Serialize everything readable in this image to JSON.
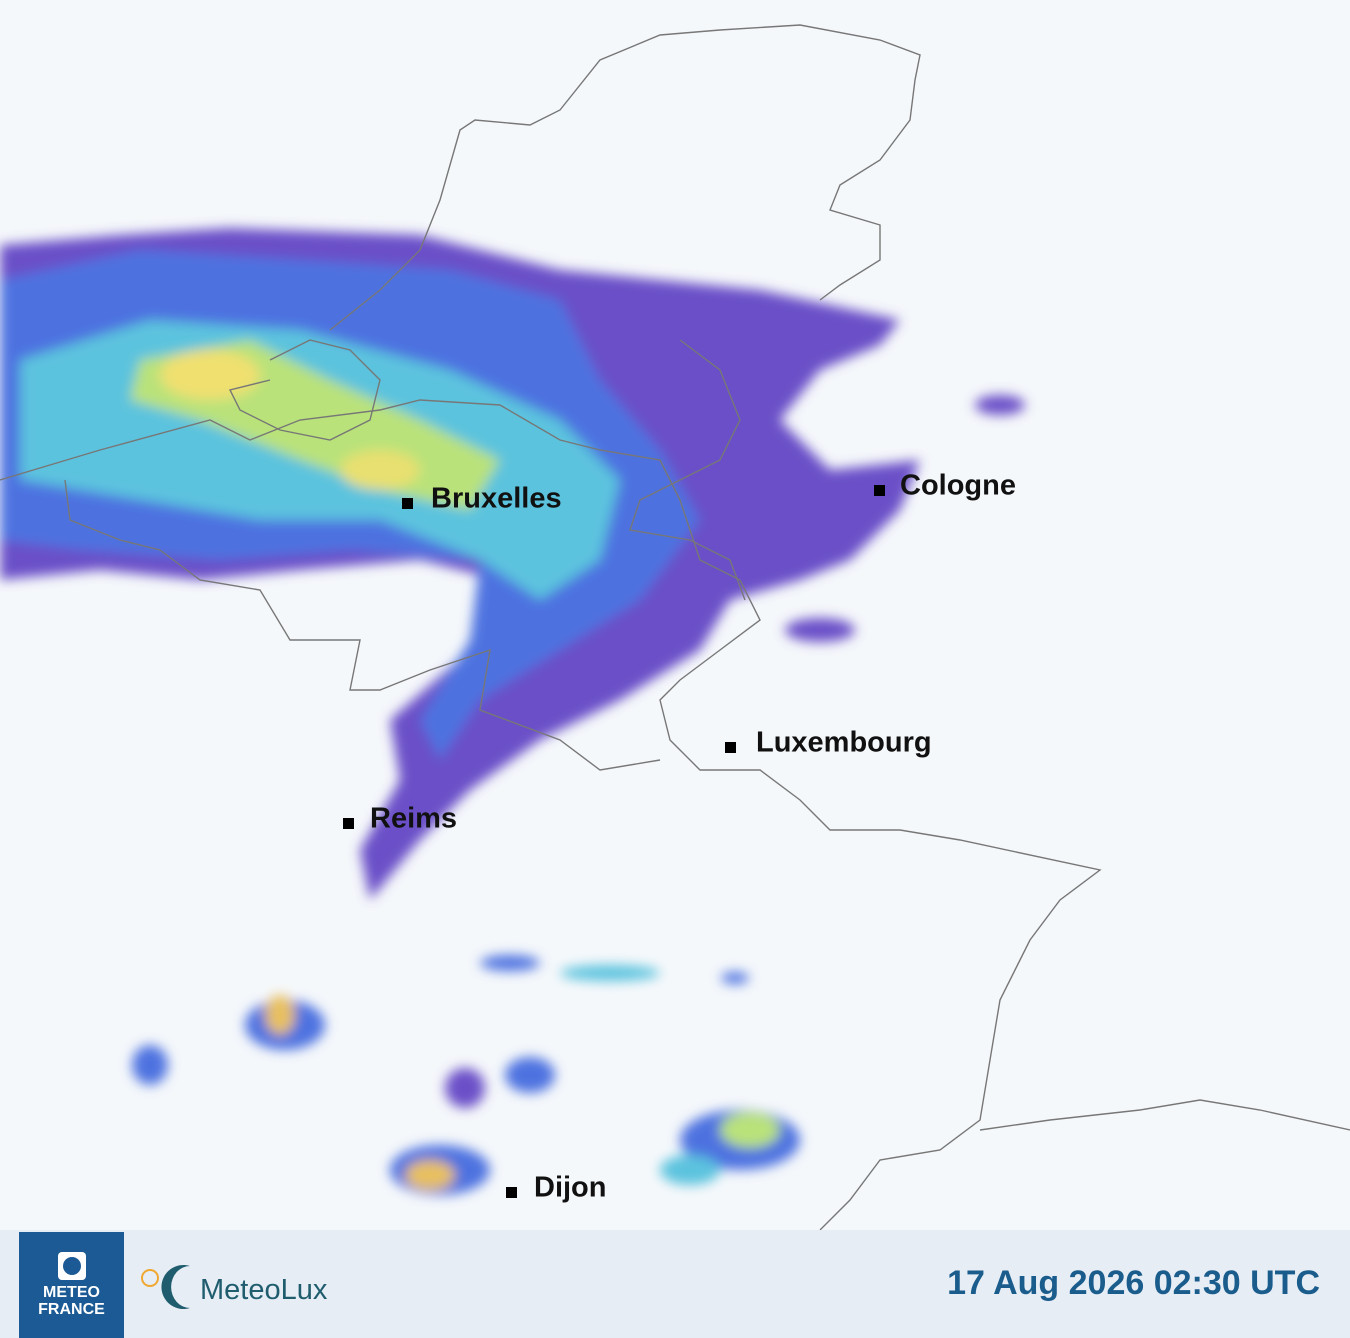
{
  "map": {
    "cities": [
      "Bruxelles",
      "Cologne",
      "Luxembourg",
      "Reims",
      "Dijon"
    ]
  },
  "footer": {
    "meteofrance_logo": [
      "METEO",
      "FRANCE"
    ],
    "meteolux_logo": "MeteoLux",
    "timestamp": "17 Aug 2026 02:30 UTC"
  }
}
